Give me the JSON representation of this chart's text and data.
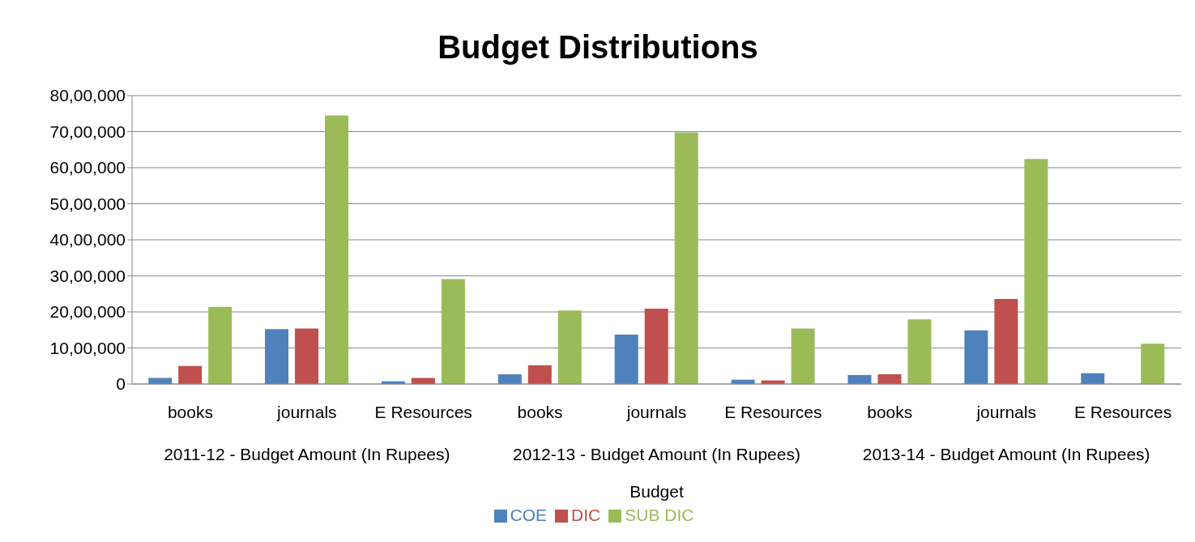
{
  "chart_data": {
    "type": "bar",
    "title": "Budget Distributions",
    "xlabel": "Budget",
    "categories": [
      "books",
      "journals",
      "E Resources",
      "books",
      "journals",
      "E Resources",
      "books",
      "journals",
      "E Resources"
    ],
    "annotations": [
      "2011-12 - Budget Amount (In Rupees)",
      "2012-13 - Budget Amount (In Rupees)",
      "2013-14 - Budget Amount (In Rupees)"
    ],
    "series": [
      {
        "name": "COE",
        "color": "#4f81bd",
        "values": [
          170000,
          1520000,
          75000,
          270000,
          1370000,
          120000,
          250000,
          1490000,
          300000
        ]
      },
      {
        "name": "DIC",
        "color": "#c0504d",
        "values": [
          500000,
          1540000,
          170000,
          520000,
          2090000,
          100000,
          270000,
          2360000,
          0
        ]
      },
      {
        "name": "SUB DIC",
        "color": "#9bbb59",
        "values": [
          2140000,
          7450000,
          2910000,
          2040000,
          6980000,
          1540000,
          1790000,
          6240000,
          1120000
        ]
      }
    ],
    "ylim": [
      0,
      8000000
    ],
    "yticks": [
      {
        "value": 0,
        "label": "0"
      },
      {
        "value": 1000000,
        "label": "10,00,000"
      },
      {
        "value": 2000000,
        "label": "20,00,000"
      },
      {
        "value": 3000000,
        "label": "30,00,000"
      },
      {
        "value": 4000000,
        "label": "40,00,000"
      },
      {
        "value": 5000000,
        "label": "50,00,000"
      },
      {
        "value": 6000000,
        "label": "60,00,000"
      },
      {
        "value": 7000000,
        "label": "70,00,000"
      },
      {
        "value": 8000000,
        "label": "80,00,000"
      }
    ],
    "grid": "y",
    "legend": "bottom"
  }
}
